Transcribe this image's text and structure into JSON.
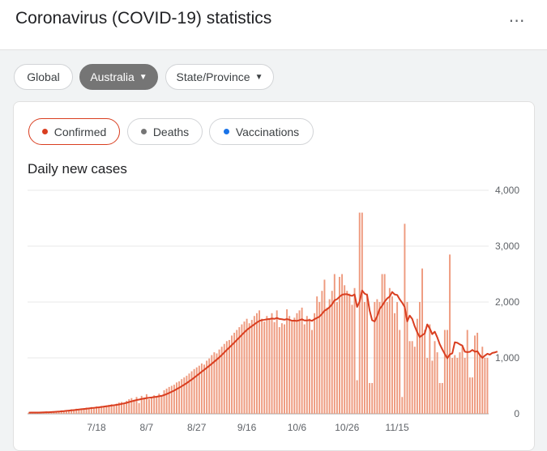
{
  "header": {
    "title": "Coronavirus (COVID-19) statistics",
    "menu_icon": "more-horiz-icon"
  },
  "region_tabs": [
    {
      "label": "Global",
      "selected": false,
      "dropdown": false
    },
    {
      "label": "Australia",
      "selected": true,
      "dropdown": true
    },
    {
      "label": "State/Province",
      "selected": false,
      "dropdown": true
    }
  ],
  "metric_tabs": [
    {
      "label": "Confirmed",
      "selected": true,
      "color": "#d93e20"
    },
    {
      "label": "Deaths",
      "selected": false,
      "color": "#757575"
    },
    {
      "label": "Vaccinations",
      "selected": false,
      "color": "#1a73e8"
    }
  ],
  "colors": {
    "bar": "#ee9a7e",
    "line": "#d93e20",
    "grid": "#e8e8e8",
    "axis_text": "#5f6368"
  },
  "chart_data": {
    "type": "bar",
    "title": "Daily new cases",
    "xlabel": "",
    "ylabel": "",
    "ylim": [
      0,
      4000
    ],
    "yticks": [
      "0",
      "1,000",
      "2,000",
      "3,000",
      "4,000"
    ],
    "ytick_values": [
      0,
      1000,
      2000,
      3000,
      4000
    ],
    "xticks": [
      "7/18",
      "8/7",
      "8/27",
      "9/16",
      "10/6",
      "10/26",
      "11/15"
    ],
    "grid": true,
    "series": [
      {
        "kind": "bar",
        "values": [
          20,
          25,
          15,
          30,
          22,
          35,
          28,
          40,
          25,
          30,
          45,
          50,
          38,
          60,
          55,
          65,
          70,
          80,
          75,
          90,
          85,
          95,
          100,
          110,
          95,
          120,
          115,
          130,
          125,
          140,
          135,
          150,
          160,
          170,
          155,
          180,
          200,
          210,
          195,
          230,
          260,
          280,
          250,
          300,
          190,
          320,
          290,
          350,
          260,
          300,
          330,
          310,
          360,
          330,
          420,
          450,
          480,
          500,
          520,
          560,
          580,
          620,
          650,
          680,
          720,
          760,
          800,
          830,
          860,
          900,
          880,
          950,
          990,
          1050,
          1100,
          1080,
          1150,
          1200,
          1250,
          1300,
          1320,
          1400,
          1450,
          1500,
          1550,
          1600,
          1650,
          1700,
          1620,
          1680,
          1750,
          1800,
          1850,
          1700,
          1650,
          1750,
          1700,
          1800,
          1640,
          1850,
          1550,
          1620,
          1600,
          1870,
          1750,
          1650,
          1720,
          1800,
          1850,
          1900,
          1600,
          1750,
          1700,
          1500,
          1800,
          2100,
          2000,
          2200,
          2400,
          1900,
          2050,
          2200,
          2500,
          2000,
          2450,
          2500,
          2300,
          2200,
          2150,
          1950,
          2250,
          600,
          3600,
          3600,
          2000,
          2150,
          550,
          550,
          2000,
          2050,
          2000,
          2500,
          2500,
          2000,
          2250,
          2100,
          1800,
          2000,
          1500,
          300,
          3400,
          2000,
          1300,
          1300,
          1200,
          1700,
          2000,
          2600,
          1500,
          1000,
          1600,
          950,
          1300,
          1100,
          550,
          550,
          1500,
          1500,
          2850,
          1000,
          1050,
          1000,
          1100,
          1200,
          1000,
          1500,
          650,
          650,
          1400,
          1450,
          1050,
          1200,
          1000,
          1000
        ]
      },
      {
        "kind": "line",
        "values": [
          20,
          21,
          21,
          22,
          22,
          24,
          25,
          27,
          28,
          30,
          33,
          36,
          39,
          43,
          47,
          52,
          56,
          61,
          66,
          71,
          76,
          81,
          86,
          91,
          96,
          101,
          106,
          111,
          116,
          122,
          128,
          134,
          140,
          147,
          153,
          160,
          166,
          176,
          186,
          196,
          209,
          222,
          234,
          246,
          254,
          264,
          272,
          281,
          286,
          291,
          299,
          304,
          313,
          320,
          335,
          352,
          372,
          393,
          415,
          440,
          465,
          492,
          520,
          549,
          580,
          612,
          646,
          681,
          716,
          752,
          787,
          822,
          858,
          894,
          932,
          970,
          1008,
          1052,
          1097,
          1142,
          1185,
          1229,
          1275,
          1320,
          1365,
          1412,
          1457,
          1500,
          1535,
          1568,
          1601,
          1633,
          1662,
          1676,
          1682,
          1691,
          1695,
          1705,
          1699,
          1715,
          1697,
          1692,
          1683,
          1695,
          1682,
          1665,
          1666,
          1662,
          1675,
          1691,
          1670,
          1671,
          1678,
          1663,
          1693,
          1715,
          1739,
          1788,
          1845,
          1869,
          1907,
          1958,
          2030,
          2051,
          2094,
          2130,
          2140,
          2140,
          2122,
          2110,
          2136,
          1912,
          2006,
          2207,
          2150,
          2127,
          1850,
          1674,
          1652,
          1745,
          1876,
          1934,
          2007,
          2064,
          2097,
          2180,
          2136,
          2126,
          2049,
          1987,
          1911,
          1652,
          1757,
          1698,
          1565,
          1459,
          1372,
          1407,
          1438,
          1599,
          1526,
          1425,
          1469,
          1367,
          1243,
          1153,
          1070,
          993,
          1061,
          1082,
          1280,
          1270,
          1242,
          1220,
          1110,
          1103,
          1109,
          1142,
          1111,
          1118,
          1050,
          1000,
          1041,
          1074,
          1058,
          1089,
          1098,
          1114
        ]
      }
    ]
  }
}
